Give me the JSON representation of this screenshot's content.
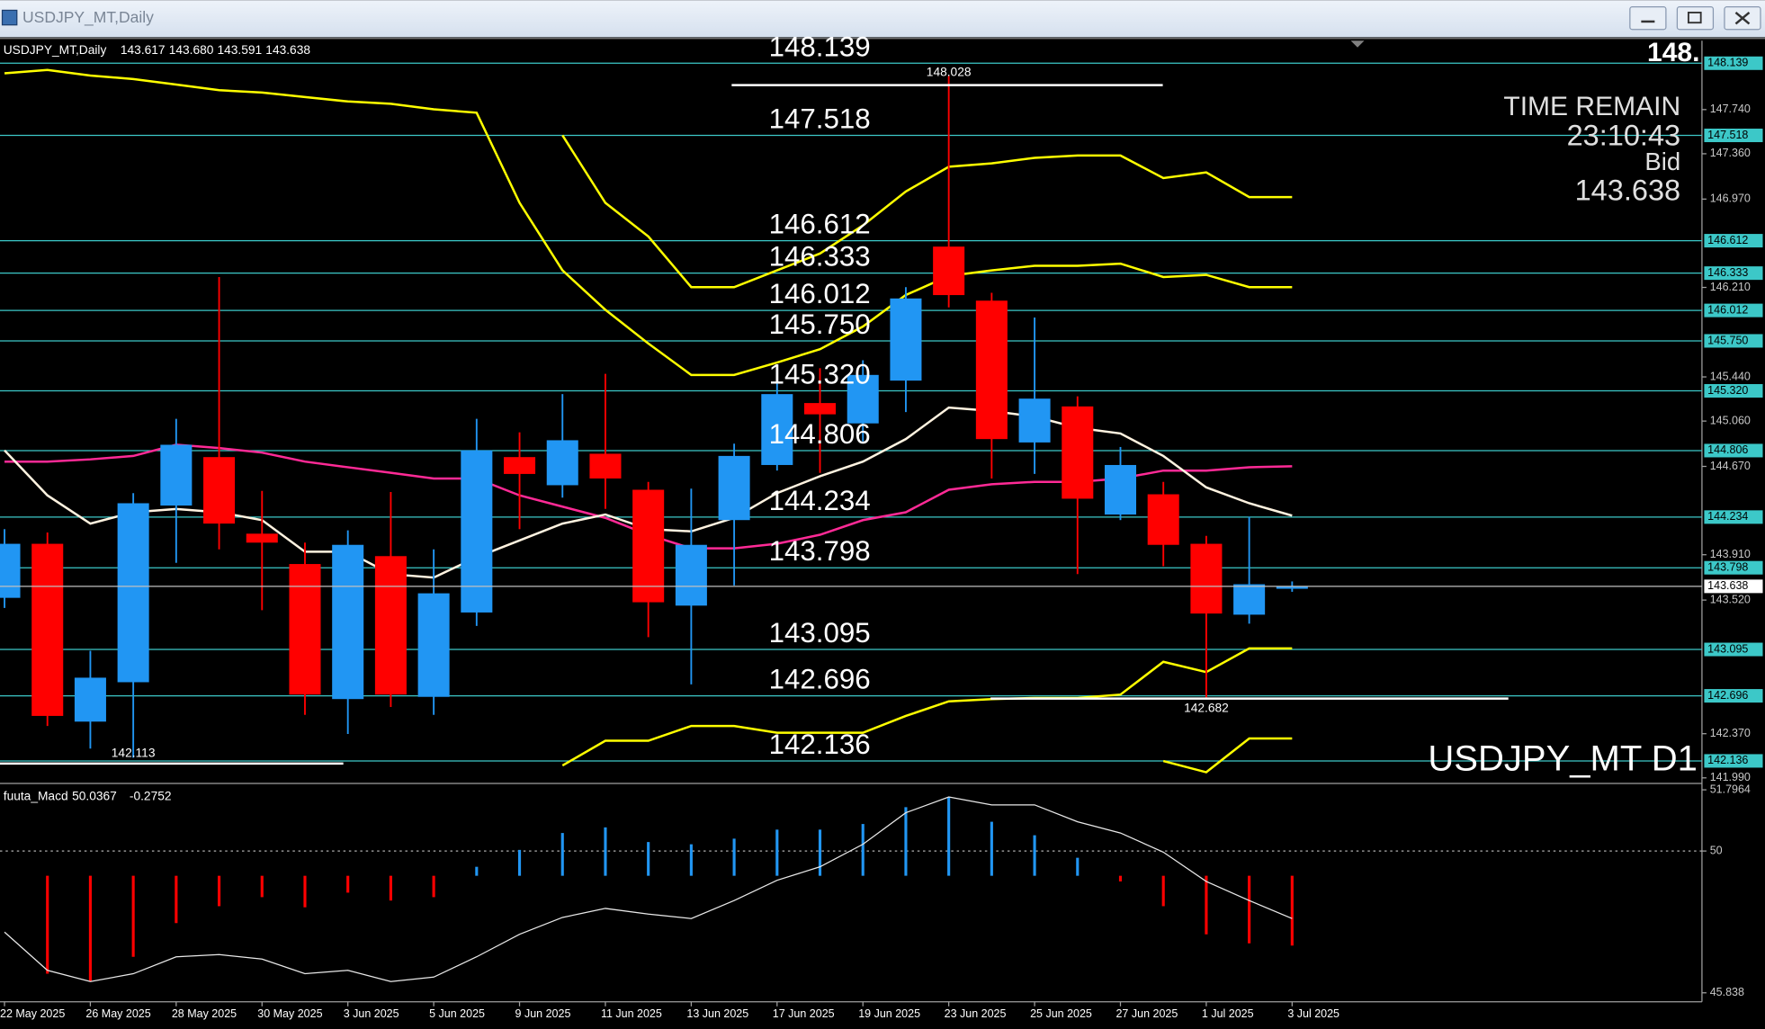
{
  "window": {
    "title": "USDJPY_MT,Daily"
  },
  "chart_data": {
    "type": "candlestick",
    "title": "USDJPY_MT,Daily",
    "ohlc_labels": [
      "143.617",
      "143.680",
      "143.591",
      "143.638"
    ],
    "symbol_label": "USDJPY_MT D1",
    "corner_text": "148.",
    "time_remain_label": "TIME REMAIN",
    "time_remain": "23:10:43",
    "bid_label": "Bid",
    "categories": [
      "22 May 2025",
      null,
      "26 May 2025",
      null,
      "28 May 2025",
      null,
      "30 May 2025",
      null,
      "3 Jun 2025",
      null,
      "5 Jun 2025",
      null,
      "9 Jun 2025",
      null,
      "11 Jun 2025",
      null,
      "13 Jun 2025",
      null,
      "17 Jun 2025",
      null,
      "19 Jun 2025",
      null,
      "23 Jun 2025",
      null,
      "25 Jun 2025",
      null,
      "27 Jun 2025",
      null,
      "1 Jul 2025",
      null,
      "3 Jul 2025"
    ],
    "open": [
      143.539,
      144.004,
      142.474,
      142.813,
      144.333,
      144.75,
      144.091,
      143.83,
      142.668,
      143.898,
      142.687,
      143.413,
      144.75,
      144.508,
      144.779,
      144.469,
      143.472,
      144.208,
      144.682,
      145.215,
      145.04,
      145.408,
      146.561,
      146.096,
      144.876,
      145.186,
      144.256,
      144.43,
      144.004,
      143.394,
      143.617
    ],
    "high": [
      144.13,
      144.101,
      143.084,
      144.44,
      145.079,
      146.299,
      144.459,
      144.014,
      144.12,
      144.45,
      143.956,
      145.079,
      144.963,
      145.292,
      145.466,
      144.537,
      144.479,
      144.866,
      145.408,
      145.515,
      145.583,
      146.212,
      148.028,
      146.164,
      145.951,
      145.273,
      144.837,
      144.537,
      144.072,
      144.237,
      143.68
    ],
    "low": [
      143.452,
      142.436,
      142.242,
      142.164,
      143.84,
      143.956,
      143.433,
      142.532,
      142.368,
      142.6,
      142.532,
      143.297,
      144.13,
      144.401,
      144.304,
      143.201,
      142.794,
      143.646,
      144.634,
      144.614,
      144.885,
      145.137,
      146.038,
      144.566,
      144.605,
      143.743,
      144.208,
      143.811,
      142.682,
      143.317,
      143.591
    ],
    "close": [
      144.004,
      142.523,
      142.852,
      144.353,
      144.856,
      144.178,
      144.014,
      142.707,
      143.995,
      142.707,
      143.578,
      144.808,
      144.605,
      144.895,
      144.566,
      143.501,
      143.995,
      144.76,
      145.292,
      145.118,
      145.457,
      146.115,
      146.144,
      144.905,
      145.253,
      144.392,
      144.682,
      143.995,
      143.404,
      143.656,
      143.638
    ],
    "up_color": "#2196f3",
    "down_color": "#ff0000",
    "ylim": [
      141.961,
      148.333
    ],
    "yticks": [
      {
        "value": 147.74,
        "label": "147.740"
      },
      {
        "value": 147.36,
        "label": "147.360"
      },
      {
        "value": 146.97,
        "label": "146.970"
      },
      {
        "value": 146.21,
        "label": "146.210"
      },
      {
        "value": 145.44,
        "label": "145.440"
      },
      {
        "value": 145.06,
        "label": "145.060"
      },
      {
        "value": 144.67,
        "label": "144.670"
      },
      {
        "value": 143.91,
        "label": "143.910"
      },
      {
        "value": 143.52,
        "label": "143.520"
      },
      {
        "value": 142.37,
        "label": "142.370"
      },
      {
        "value": 141.99,
        "label": "141.990"
      }
    ],
    "levels": [
      148.139,
      147.518,
      146.612,
      146.333,
      146.012,
      {
        "value": 145.75,
        "label": "145.750"
      },
      {
        "value": 145.32,
        "label": "145.320"
      },
      144.806,
      144.234,
      143.798,
      143.095,
      142.696,
      142.136
    ],
    "level_color": "#3cc8c8",
    "marked_low": 142.113,
    "lines": [
      {
        "color": "#ffff00",
        "values": [
          null,
          null,
          null,
          null,
          null,
          null,
          null,
          null,
          null,
          null,
          null,
          null,
          null,
          147.519,
          146.938,
          146.648,
          146.212,
          146.212,
          146.357,
          146.502,
          146.744,
          147.035,
          147.248,
          147.277,
          147.325,
          147.345,
          147.345,
          147.151,
          147.2,
          146.987,
          146.987
        ]
      },
      {
        "color": "#ffff00",
        "values": [
          148.052,
          148.081,
          148.033,
          148.003,
          147.955,
          147.907,
          147.887,
          147.848,
          147.81,
          147.79,
          147.742,
          147.713,
          146.938,
          146.357,
          146.018,
          145.727,
          145.457,
          145.457,
          145.563,
          145.679,
          145.873,
          146.144,
          146.309,
          146.357,
          146.396,
          146.396,
          146.415,
          146.299,
          146.318,
          146.212,
          146.212
        ]
      },
      {
        "color": "#ff2a96",
        "values": [
          144.711,
          144.711,
          144.731,
          144.76,
          144.856,
          144.827,
          144.789,
          144.711,
          144.663,
          144.615,
          144.566,
          144.566,
          144.421,
          144.324,
          144.227,
          144.082,
          143.965,
          143.965,
          144.004,
          144.082,
          144.208,
          144.275,
          144.469,
          144.517,
          144.537,
          144.537,
          144.566,
          144.634,
          144.634,
          144.663,
          144.672
        ]
      },
      {
        "color": "#fff3e0",
        "values": [
          144.808,
          144.421,
          144.178,
          144.275,
          144.304,
          144.275,
          144.208,
          143.936,
          143.936,
          143.743,
          143.714,
          143.888,
          144.033,
          144.178,
          144.256,
          144.13,
          144.111,
          144.227,
          144.44,
          144.585,
          144.711,
          144.905,
          145.176,
          145.147,
          145.099,
          145.002,
          144.953,
          144.76,
          144.489,
          144.353,
          144.246
        ]
      },
      {
        "color": "#ffff00",
        "values": [
          null,
          null,
          null,
          null,
          null,
          null,
          null,
          null,
          null,
          null,
          null,
          null,
          null,
          142.097,
          142.31,
          142.31,
          142.436,
          142.436,
          142.378,
          142.378,
          142.378,
          142.523,
          142.649,
          142.668,
          142.678,
          142.678,
          142.707,
          142.988,
          142.9,
          143.104,
          143.104
        ]
      },
      {
        "color": "#ffff00",
        "values": [
          null,
          null,
          null,
          null,
          null,
          null,
          null,
          null,
          null,
          null,
          null,
          null,
          null,
          null,
          null,
          null,
          null,
          null,
          null,
          null,
          null,
          null,
          null,
          null,
          null,
          null,
          null,
          142.135,
          142.038,
          142.329,
          142.329
        ]
      }
    ]
  },
  "macd": {
    "name": "fuuta_Macd",
    "value1": 50.0367,
    "value2": -0.2752,
    "ylim": [
      45.573,
      51.916
    ],
    "yticks": [
      51.7964,
      50,
      45.838
    ],
    "level": 50,
    "line_color": "#e8e8e8",
    "line": [
      47.621,
      46.498,
      46.168,
      46.399,
      46.895,
      46.961,
      46.829,
      46.399,
      46.498,
      46.168,
      46.3,
      46.895,
      47.555,
      48.051,
      48.315,
      48.15,
      48.018,
      48.546,
      49.141,
      49.537,
      50.198,
      51.123,
      51.586,
      51.354,
      51.354,
      50.859,
      50.529,
      49.967,
      49.108,
      48.546,
      48.018
    ],
    "histogram": [
      null,
      [
        49.273,
        46.399
      ],
      [
        49.273,
        46.168
      ],
      [
        49.273,
        46.895
      ],
      [
        49.273,
        47.886
      ],
      [
        49.273,
        48.381
      ],
      [
        49.273,
        48.646
      ],
      [
        49.273,
        48.348
      ],
      [
        49.273,
        48.778
      ],
      [
        49.273,
        48.546
      ],
      [
        49.273,
        48.646
      ],
      [
        49.273,
        49.537
      ],
      [
        49.273,
        50.033
      ],
      [
        49.273,
        50.529
      ],
      [
        49.273,
        50.694
      ],
      [
        49.273,
        50.264
      ],
      [
        49.273,
        50.198
      ],
      [
        49.273,
        50.363
      ],
      [
        49.273,
        50.628
      ],
      [
        49.273,
        50.628
      ],
      [
        49.273,
        50.793
      ],
      [
        49.273,
        51.288
      ],
      [
        49.273,
        51.586
      ],
      [
        49.273,
        50.859
      ],
      [
        49.273,
        50.463
      ],
      [
        49.273,
        49.802
      ],
      [
        49.273,
        49.108
      ],
      [
        49.273,
        48.381
      ],
      [
        49.273,
        47.555
      ],
      [
        49.273,
        47.291
      ],
      [
        49.273,
        47.225
      ]
    ]
  }
}
